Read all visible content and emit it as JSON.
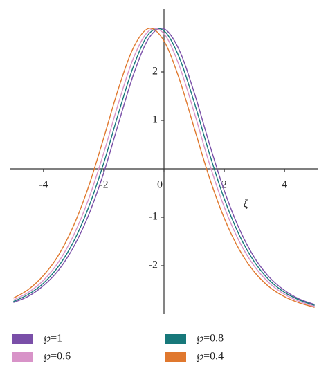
{
  "chart_data": {
    "type": "line",
    "x_label": "ξ",
    "x": [
      -5,
      -4.5,
      -4,
      -3.5,
      -3,
      -2.5,
      -2,
      -1.5,
      -1,
      -0.5,
      0,
      0.5,
      1,
      1.5,
      2,
      2.5,
      3,
      3.5,
      4,
      4.5,
      5
    ],
    "series": [
      {
        "name": "℘=1",
        "color": "#7a4fa8",
        "values": [
          -2.76,
          -2.63,
          -2.41,
          -2.09,
          -1.61,
          -0.95,
          -0.08,
          0.96,
          1.97,
          2.7,
          2.89,
          2.46,
          1.58,
          0.53,
          -0.45,
          -1.24,
          -1.83,
          -2.24,
          -2.51,
          -2.69,
          -2.8
        ]
      },
      {
        "name": "℘=0.8",
        "color": "#17787a",
        "values": [
          -2.74,
          -2.59,
          -2.36,
          -2.01,
          -1.5,
          -0.79,
          0.12,
          1.17,
          2.14,
          2.79,
          2.85,
          2.31,
          1.38,
          0.33,
          -0.62,
          -1.37,
          -1.92,
          -2.3,
          -2.55,
          -2.71,
          -2.82
        ]
      },
      {
        "name": "℘=0.6",
        "color": "#d893c8",
        "values": [
          -2.71,
          -2.55,
          -2.3,
          -1.92,
          -1.37,
          -0.62,
          0.33,
          1.38,
          2.31,
          2.85,
          2.79,
          2.14,
          1.17,
          0.12,
          -0.79,
          -1.5,
          -2.01,
          -2.36,
          -2.59,
          -2.74,
          -2.84
        ]
      },
      {
        "name": "℘=0.4",
        "color": "#e0782e",
        "values": [
          -2.67,
          -2.49,
          -2.2,
          -1.78,
          -1.17,
          -0.36,
          0.64,
          1.68,
          2.52,
          2.9,
          2.64,
          1.87,
          0.85,
          -0.17,
          -1.02,
          -1.67,
          -2.13,
          -2.44,
          -2.64,
          -2.77,
          -2.86
        ]
      }
    ],
    "xlim": [
      -5.1,
      5.1
    ],
    "ylim": [
      -3.0,
      3.3
    ],
    "xticks": [
      -4,
      -2,
      0,
      2,
      4
    ],
    "yticks": [
      -2,
      -1,
      1,
      2
    ]
  }
}
